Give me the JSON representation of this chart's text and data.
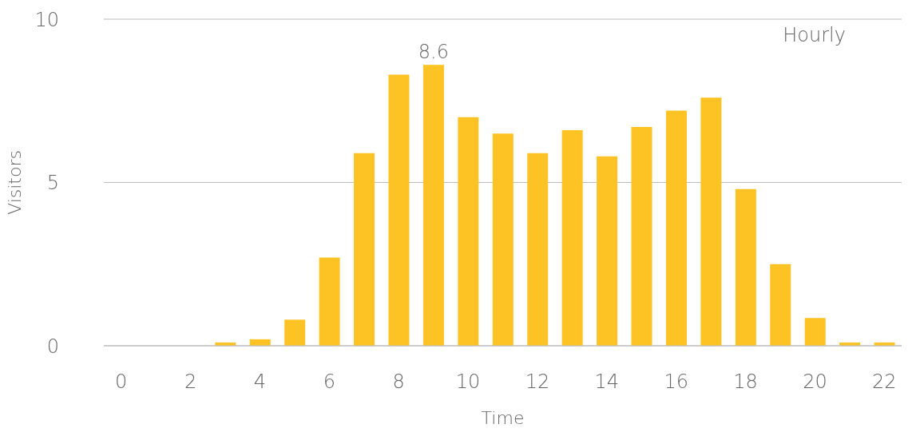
{
  "chart_data": {
    "type": "bar",
    "xlabel": "Time",
    "ylabel": "Visitors",
    "annotations": [
      "Hourly"
    ],
    "categories": [
      "0",
      null,
      "2",
      null,
      "4",
      null,
      "6",
      null,
      "8",
      null,
      "10",
      null,
      "12",
      null,
      "14",
      null,
      "16",
      null,
      "18",
      null,
      "20",
      null,
      "22"
    ],
    "values": [
      0,
      0,
      0,
      0.1,
      0.2,
      0.8,
      2.7,
      5.9,
      8.3,
      8.6,
      7.0,
      6.5,
      5.9,
      6.6,
      5.8,
      6.7,
      7.2,
      7.6,
      4.8,
      2.5,
      0.85,
      0.1,
      0.1
    ],
    "value_labels": [
      null,
      null,
      null,
      null,
      null,
      null,
      null,
      null,
      null,
      "8.6",
      null,
      null,
      null,
      null,
      null,
      null,
      null,
      null,
      null,
      null,
      null,
      null,
      null
    ],
    "color": "#fdc325",
    "ylim": [
      0,
      10
    ],
    "yticks": [
      0,
      5,
      10
    ],
    "grid": "y"
  }
}
